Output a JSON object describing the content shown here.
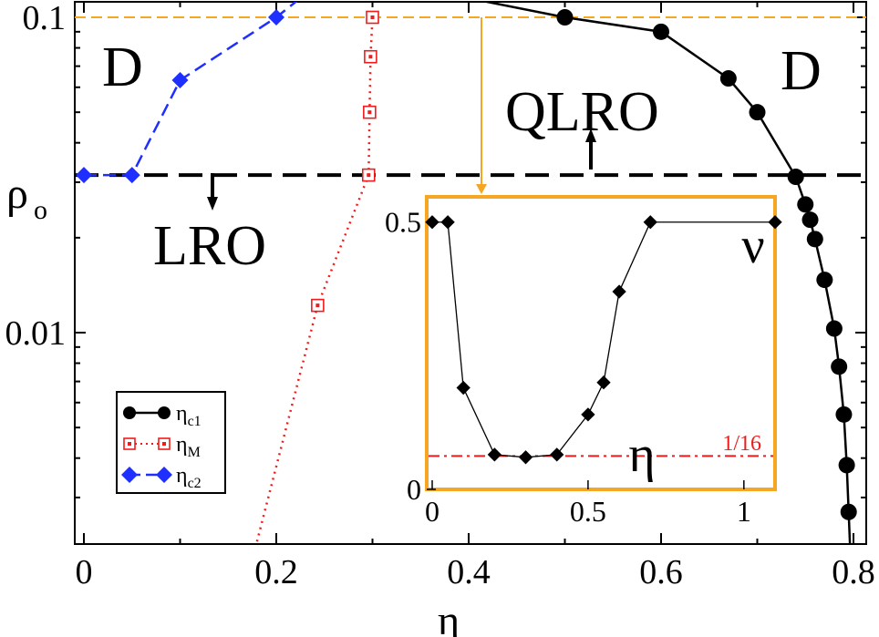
{
  "chart_data": [
    {
      "type": "line",
      "role": "main",
      "xlabel": "η",
      "ylabel": "ρ",
      "ylabel_sub": "o",
      "xlim": [
        0,
        0.8
      ],
      "ylim": [
        0.0015,
        0.11
      ],
      "yscale": "log",
      "x_ticks": [
        {
          "value": 0,
          "label": "0"
        },
        {
          "value": 0.2,
          "label": "0.2"
        },
        {
          "value": 0.4,
          "label": "0.4"
        },
        {
          "value": 0.6,
          "label": "0.6"
        },
        {
          "value": 0.8,
          "label": "0.8"
        }
      ],
      "y_ticks": [
        {
          "value": 0.01,
          "label": "0.01"
        },
        {
          "value": 0.1,
          "label": "0.1"
        }
      ],
      "grid": false,
      "legend": "bottom-left",
      "series": [
        {
          "name": "η",
          "name_sub": "c1",
          "color": "#000000",
          "marker": "circle",
          "line": "solid",
          "x": [
            0.4,
            0.5,
            0.6,
            0.67,
            0.7,
            0.74,
            0.75,
            0.755,
            0.76,
            0.77,
            0.78,
            0.785,
            0.79,
            0.793,
            0.795,
            0.797
          ],
          "y": [
            0.115,
            0.1,
            0.09,
            0.064,
            0.05,
            0.0312,
            0.0255,
            0.0228,
            0.0198,
            0.0147,
            0.0103,
            0.0078,
            0.0055,
            0.0038,
            0.0027,
            0.0019
          ]
        },
        {
          "name": "η",
          "name_sub": "M",
          "color": "#ee1c1c",
          "marker": "open-square",
          "line": "dotted",
          "x": [
            0.175,
            0.243,
            0.296,
            0.297,
            0.298,
            0.3
          ],
          "y": [
            0.0019,
            0.0122,
            0.0316,
            0.05,
            0.075,
            0.1
          ]
        },
        {
          "name": "η",
          "name_sub": "c2",
          "color": "#1f2fff",
          "marker": "diamond",
          "line": "dashed",
          "x": [
            0,
            0.05,
            0.1,
            0.2,
            0.225
          ],
          "y": [
            0.0316,
            0.0316,
            0.0632,
            0.1,
            0.115
          ]
        }
      ],
      "reference_lines": [
        {
          "axis": "y",
          "value": 0.0316,
          "color": "#000000",
          "style": "dashed"
        },
        {
          "axis": "y",
          "value": 0.1,
          "color": "#f5a623",
          "style": "dashed"
        }
      ],
      "annotations": [
        {
          "text": "D",
          "region": "top-left"
        },
        {
          "text": "D",
          "region": "top-right"
        },
        {
          "text": "QLRO",
          "region": "above-line"
        },
        {
          "text": "LRO",
          "region": "below-line"
        }
      ]
    },
    {
      "type": "line",
      "role": "inset",
      "xlabel": "η",
      "ylabel": "ν",
      "xlim": [
        0,
        1.1
      ],
      "ylim": [
        0,
        0.52
      ],
      "x_ticks": [
        {
          "value": 0,
          "label": "0"
        },
        {
          "value": 0.5,
          "label": "0.5"
        },
        {
          "value": 1,
          "label": "1"
        }
      ],
      "y_ticks": [
        {
          "value": 0,
          "label": "0"
        },
        {
          "value": 0.5,
          "label": "0.5"
        }
      ],
      "frame_color": "#f5a623",
      "series": [
        {
          "color": "#000000",
          "marker": "diamond",
          "line": "solid",
          "x": [
            0,
            0.05,
            0.1,
            0.2,
            0.3,
            0.4,
            0.5,
            0.55,
            0.6,
            0.7,
            1.1
          ],
          "y": [
            0.5,
            0.5,
            0.19,
            0.065,
            0.06,
            0.065,
            0.14,
            0.2,
            0.37,
            0.5,
            0.5
          ]
        }
      ],
      "reference_lines": [
        {
          "axis": "y",
          "value": 0.0625,
          "label": "1/16",
          "color": "#ee1c1c",
          "style": "dashdot"
        }
      ]
    }
  ]
}
